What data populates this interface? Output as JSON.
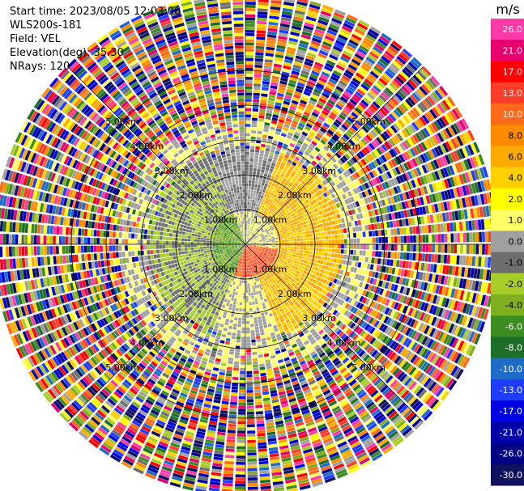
{
  "header": {
    "start_time": "Start time: 2023/08/05 12:03:06",
    "instrument": "WLS200s-181",
    "field": "Field: VEL",
    "elevation": "Elevation(deg): 35.30",
    "nrays": "NRays: 120"
  },
  "colorbar": {
    "unit": "m/s",
    "ticks": [
      "26.0",
      "21.0",
      "17.0",
      "13.0",
      "10.0",
      "8.0",
      "6.0",
      "4.0",
      "2.0",
      "1.0",
      "0.0",
      "-1.0",
      "-2.0",
      "-4.0",
      "-6.0",
      "-8.0",
      "-10.0",
      "-13.0",
      "-17.0",
      "-21.0",
      "-26.0",
      "-30.0"
    ],
    "colors": [
      "#ff3aa8",
      "#e8006c",
      "#ff0000",
      "#ff3b2a",
      "#ff6a1a",
      "#ff8a00",
      "#ffaa00",
      "#ffd000",
      "#ffff00",
      "#ffff66",
      "#a0a0a0",
      "#6e6e6e",
      "#a8cc2a",
      "#7fae1e",
      "#3c8c22",
      "#1d6e28",
      "#1e6cc8",
      "#1f3cff",
      "#0000e0",
      "#0000a8",
      "#000084",
      "#101060"
    ]
  },
  "chart_data": {
    "type": "ppi",
    "field": "VEL",
    "units": "m/s",
    "nrays": 120,
    "elevation_deg": 35.3,
    "range_rings_km": [
      1.0,
      2.0,
      3.0,
      4.0,
      5.0
    ],
    "ring_labels": [
      "1.00km",
      "2.00km",
      "3.00km",
      "4.00km",
      "5.00km"
    ],
    "velocity_regions": [
      {
        "range_km": [
          0.0,
          0.9
        ],
        "bearing_deg": [
          200,
          340
        ],
        "value_ms": -6.0
      },
      {
        "range_km": [
          0.0,
          0.9
        ],
        "bearing_deg": [
          100,
          200
        ],
        "value_ms": 10.0
      },
      {
        "range_km": [
          0.9,
          2.8
        ],
        "bearing_deg": [
          200,
          340
        ],
        "value_ms": -2.0
      },
      {
        "range_km": [
          0.9,
          2.8
        ],
        "bearing_deg": [
          20,
          160
        ],
        "value_ms": 4.0
      },
      {
        "range_km": [
          0.9,
          2.8
        ],
        "bearing_deg": [
          160,
          200
        ],
        "value_ms": 0.0
      },
      {
        "range_km": [
          0.9,
          2.8
        ],
        "bearing_deg": [
          340,
          20
        ],
        "value_ms": -1.0
      }
    ],
    "noise_beyond_km": 3.6
  }
}
